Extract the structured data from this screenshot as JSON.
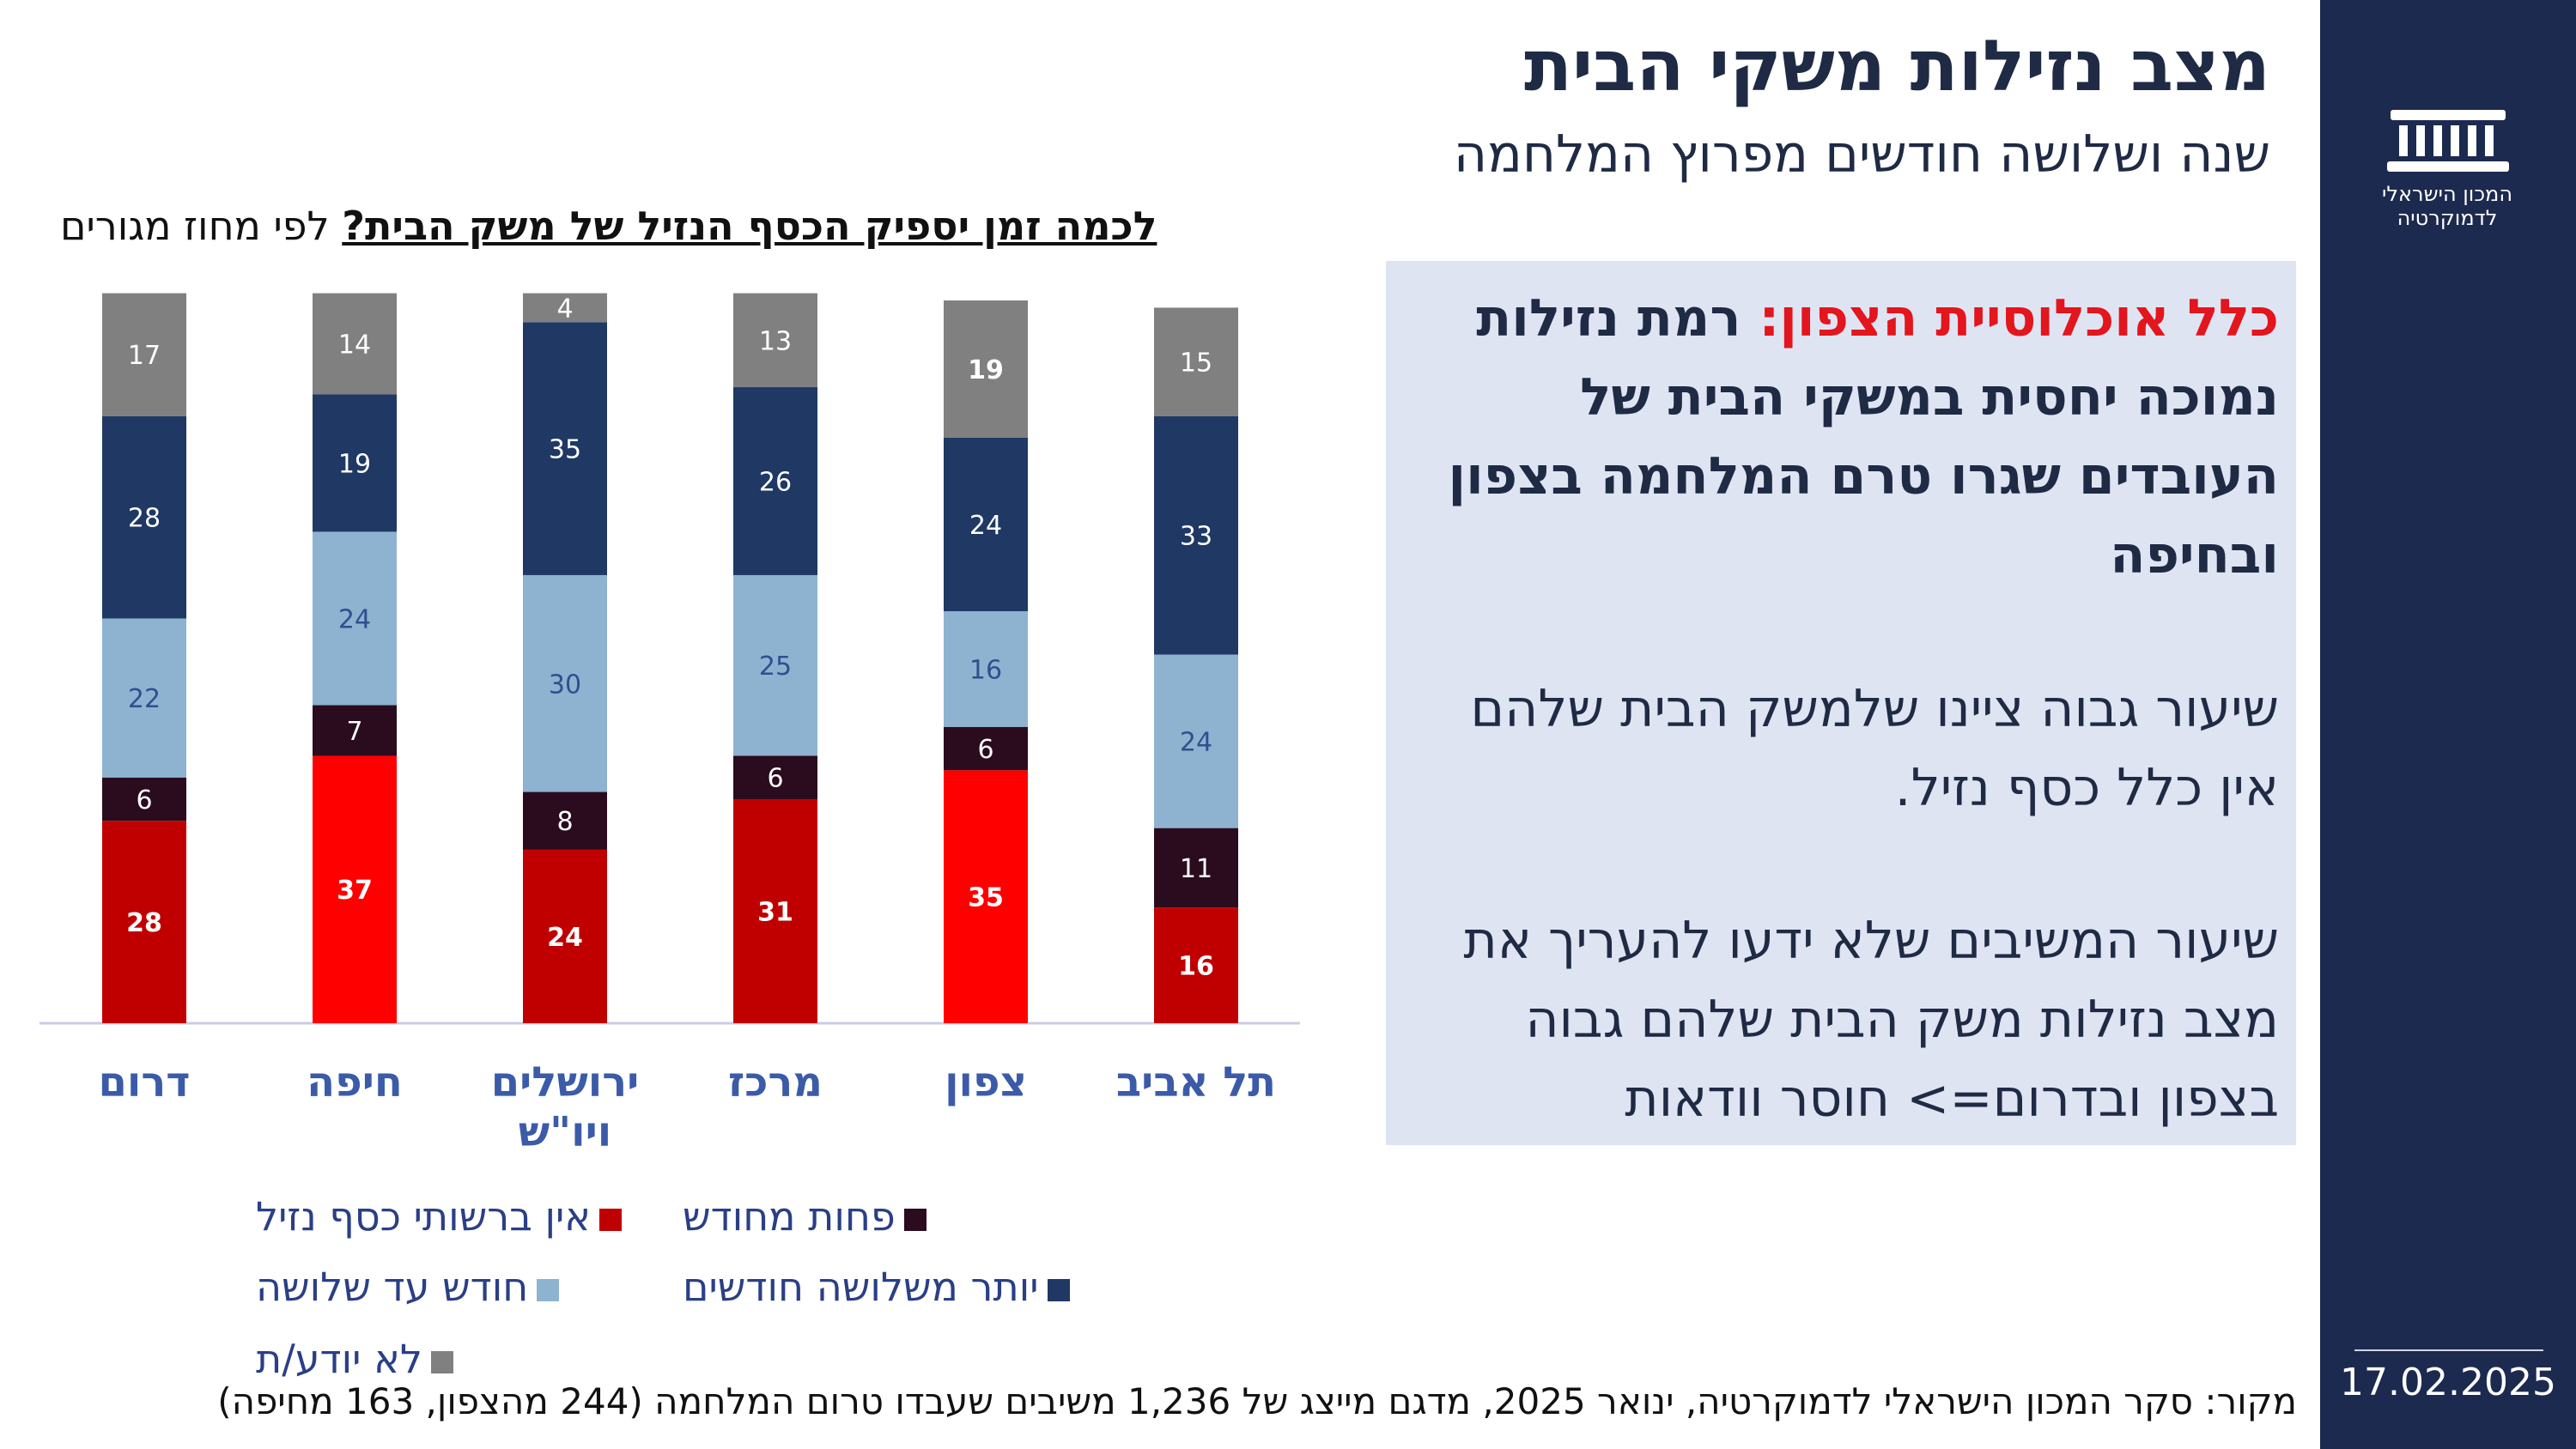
{
  "header": {
    "title": "מצב נזילות משקי הבית",
    "subtitle": "שנה ושלושה חודשים מפרוץ המלחמה"
  },
  "sidebar": {
    "logo_text": "המכון הישראלי לדמוקרטיה",
    "date": "17.02.2025"
  },
  "question": {
    "underlined": "לכמה זמן יספיק הכסף הנזיל של משק הבית?",
    "rest": " לפי מחוז מגורים"
  },
  "panel": {
    "p1_highlight": "כלל אוכלוסיית הצפון:",
    "p1_rest": " רמת נזילות נמוכה יחסית במשקי הבית של העובדים שגרו  טרם המלחמה בצפון ובחיפה",
    "p2": "שיעור גבוה ציינו שלמשק הבית שלהם אין כלל כסף נזיל.",
    "p3": "שיעור המשיבים שלא ידעו להעריך את מצב נזילות משק הבית שלהם גבוה בצפון ובדרום=> חוסר וודאות"
  },
  "source": "מקור: סקר המכון הישראלי לדמוקרטיה, ינואר 2025, מדגם מייצג של 1,236 משיבים שעבדו טרום המלחמה (244 מהצפון, 163 מחיפה)",
  "chart_data": {
    "type": "bar",
    "stacked": true,
    "categories": [
      "דרום",
      "חיפה",
      "ירושלים ויו\"ש",
      "מרכז",
      "צפון",
      "תל אביב"
    ],
    "category_lines": [
      [
        "דרום"
      ],
      [
        "חיפה"
      ],
      [
        "ירושלים",
        "ויו\"ש"
      ],
      [
        "מרכז"
      ],
      [
        "צפון"
      ],
      [
        "תל אביב"
      ]
    ],
    "series": [
      {
        "name": "אין ברשותי כסף נזיל",
        "values": [
          28,
          37,
          24,
          31,
          35,
          16
        ],
        "colors": [
          "#c00000",
          "#ff0000",
          "#c00000",
          "#c00000",
          "#ff0000",
          "#c00000"
        ]
      },
      {
        "name": "פחות מחודש",
        "values": [
          6,
          7,
          8,
          6,
          6,
          11
        ],
        "color": "#2a0c1e"
      },
      {
        "name": "חודש עד שלושה",
        "values": [
          22,
          24,
          30,
          25,
          16,
          24
        ],
        "color": "#8db3d0"
      },
      {
        "name": "יותר משלושה חודשים",
        "values": [
          28,
          19,
          35,
          26,
          24,
          33
        ],
        "color": "#1f3864"
      },
      {
        "name": "לא יודע/ת",
        "values": [
          17,
          14,
          4,
          13,
          19,
          15
        ],
        "color": "#808080"
      }
    ],
    "ylim": [
      0,
      100
    ],
    "legend_position": "bottom"
  }
}
